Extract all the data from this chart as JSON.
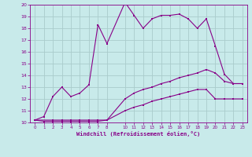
{
  "xlabel": "Windchill (Refroidissement éolien,°C)",
  "xlim": [
    -0.5,
    23.5
  ],
  "ylim": [
    10,
    20
  ],
  "xticks": [
    0,
    1,
    2,
    3,
    4,
    5,
    6,
    7,
    8,
    10,
    11,
    12,
    13,
    14,
    15,
    16,
    17,
    18,
    19,
    20,
    21,
    22,
    23
  ],
  "yticks": [
    10,
    11,
    12,
    13,
    14,
    15,
    16,
    17,
    18,
    19,
    20
  ],
  "bg_color": "#c8eaea",
  "line_color": "#880088",
  "grid_color": "#aacccc",
  "line1_x": [
    0,
    1,
    2,
    3,
    4,
    5,
    6,
    7,
    8,
    10,
    11,
    12,
    13,
    14,
    15,
    16,
    17,
    18,
    19,
    20,
    21,
    22,
    23
  ],
  "line1_y": [
    10.2,
    10.5,
    12.2,
    13.0,
    12.2,
    12.5,
    13.2,
    18.3,
    16.7,
    20.2,
    19.1,
    18.0,
    18.8,
    19.1,
    19.1,
    19.2,
    18.8,
    18.0,
    18.8,
    16.5,
    14.1,
    13.3,
    13.3
  ],
  "line2_x": [
    0,
    2,
    3,
    4,
    5,
    6,
    7,
    8,
    10,
    11,
    12,
    13,
    14,
    15,
    16,
    17,
    18,
    19,
    20,
    21,
    22,
    23
  ],
  "line2_y": [
    10.2,
    10.2,
    10.2,
    10.2,
    10.2,
    10.2,
    10.2,
    10.2,
    12.0,
    12.5,
    12.8,
    13.0,
    13.3,
    13.5,
    13.8,
    14.0,
    14.2,
    14.5,
    14.2,
    13.5,
    13.3,
    13.3
  ],
  "line3_x": [
    0,
    1,
    2,
    3,
    4,
    5,
    6,
    7,
    8,
    10,
    11,
    12,
    13,
    14,
    15,
    16,
    17,
    18,
    19,
    20,
    21,
    22,
    23
  ],
  "line3_y": [
    10.2,
    10.1,
    10.1,
    10.1,
    10.1,
    10.1,
    10.1,
    10.1,
    10.2,
    11.0,
    11.3,
    11.5,
    11.8,
    12.0,
    12.2,
    12.4,
    12.6,
    12.8,
    12.8,
    12.0,
    12.0,
    12.0,
    12.0
  ]
}
